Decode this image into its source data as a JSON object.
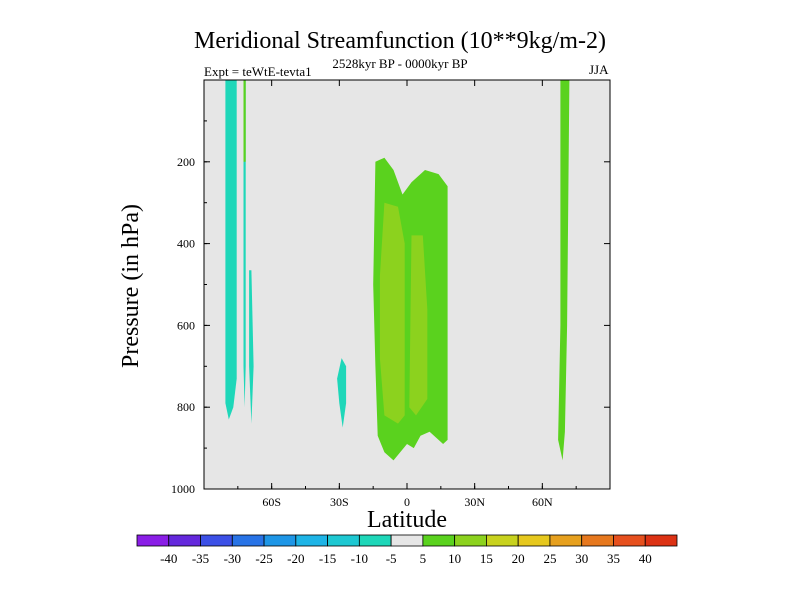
{
  "header": {
    "title": "Meridional Streamfunction (10**9kg/m-2)",
    "left_subtitle": "Expt = teWtE-tevta1",
    "center_subtitle": "2528kyr BP - 0000kyr BP",
    "right_subtitle": "JJA"
  },
  "chart_data": {
    "type": "contour",
    "title": "Meridional Streamfunction (10**9kg/m-2)",
    "xlabel": "Latitude",
    "ylabel": "Pressure (in hPa)",
    "xlim": [
      -90,
      90
    ],
    "ylim": [
      1000,
      0
    ],
    "x_ticks": [
      {
        "value": -60,
        "label": "60S"
      },
      {
        "value": -30,
        "label": "30S"
      },
      {
        "value": 0,
        "label": "0"
      },
      {
        "value": 30,
        "label": "30N"
      },
      {
        "value": 60,
        "label": "60N"
      }
    ],
    "y_ticks": [
      {
        "value": 200,
        "label": "200"
      },
      {
        "value": 400,
        "label": "400"
      },
      {
        "value": 600,
        "label": "600"
      },
      {
        "value": 800,
        "label": "800"
      },
      {
        "value": 1000,
        "label": "1000"
      }
    ],
    "background_color": "#e6e6e6",
    "colorbar": {
      "labels": [
        "-40",
        "-35",
        "-30",
        "-25",
        "-20",
        "-15",
        "-10",
        "-5",
        "5",
        "10",
        "15",
        "20",
        "25",
        "30",
        "35",
        "40"
      ],
      "colors": [
        "#8a1ee6",
        "#6428dc",
        "#3c50e6",
        "#2873e6",
        "#1e96e6",
        "#1eb4e6",
        "#1ec8d2",
        "#1ed7b9",
        "#e6e6e6",
        "#5ad21e",
        "#8cd21e",
        "#c8d21e",
        "#e6c81e",
        "#e6a01e",
        "#e6781e",
        "#e6501e",
        "#dc3214"
      ]
    },
    "regions": [
      {
        "level": "-10 to -5",
        "color": "#1ed7b9",
        "points": [
          [
            -80.5,
            0
          ],
          [
            -75.5,
            0
          ],
          [
            -75.5,
            730
          ],
          [
            -77,
            800
          ],
          [
            -79,
            830
          ],
          [
            -80.5,
            790
          ]
        ]
      },
      {
        "level": "-10 to -5",
        "color": "#1ed7b9",
        "points": [
          [
            -72.5,
            0
          ],
          [
            -71.5,
            0
          ],
          [
            -71.5,
            700
          ],
          [
            -72,
            800
          ],
          [
            -72.5,
            700
          ]
        ]
      },
      {
        "level": "-10 to -5",
        "color": "#1ed7b9",
        "points": [
          [
            -70,
            465
          ],
          [
            -69,
            465
          ],
          [
            -68,
            700
          ],
          [
            -69,
            840
          ],
          [
            -70,
            700
          ]
        ]
      },
      {
        "level": "-10 to -5",
        "color": "#1ed7b9",
        "points": [
          [
            -29,
            680
          ],
          [
            -27,
            700
          ],
          [
            -27,
            790
          ],
          [
            -28.5,
            850
          ],
          [
            -30,
            790
          ],
          [
            -31,
            730
          ]
        ]
      },
      {
        "level": "5 to 10",
        "color": "#5ad21e",
        "points": [
          [
            -72.5,
            0
          ],
          [
            -71.5,
            0
          ],
          [
            -71.5,
            200
          ],
          [
            -72.5,
            200
          ]
        ]
      },
      {
        "level": "5 to 10",
        "color": "#5ad21e",
        "points": [
          [
            -14,
            200
          ],
          [
            -10,
            190
          ],
          [
            -6,
            220
          ],
          [
            -2,
            280
          ],
          [
            2,
            250
          ],
          [
            8,
            220
          ],
          [
            14,
            230
          ],
          [
            18,
            260
          ],
          [
            18,
            880
          ],
          [
            16,
            890
          ],
          [
            10,
            860
          ],
          [
            6,
            870
          ],
          [
            3,
            900
          ],
          [
            0,
            890
          ],
          [
            -3,
            910
          ],
          [
            -6,
            930
          ],
          [
            -10,
            910
          ],
          [
            -13,
            870
          ],
          [
            -14,
            700
          ],
          [
            -15,
            500
          ]
        ]
      },
      {
        "level": "10 to 15",
        "color": "#8cd21e",
        "points": [
          [
            -10,
            300
          ],
          [
            -4,
            310
          ],
          [
            -1,
            400
          ],
          [
            -1,
            820
          ],
          [
            -4,
            840
          ],
          [
            -10,
            820
          ],
          [
            -12,
            680
          ],
          [
            -12,
            480
          ]
        ]
      },
      {
        "level": "10 to 15",
        "color": "#8cd21e",
        "points": [
          [
            2,
            380
          ],
          [
            7,
            380
          ],
          [
            9,
            560
          ],
          [
            9,
            780
          ],
          [
            4,
            820
          ],
          [
            1,
            800
          ]
        ]
      },
      {
        "level": "5 to 10",
        "color": "#5ad21e",
        "points": [
          [
            68,
            0
          ],
          [
            72,
            0
          ],
          [
            71,
            600
          ],
          [
            70,
            860
          ],
          [
            69,
            930
          ],
          [
            67,
            880
          ],
          [
            68,
            600
          ]
        ]
      }
    ]
  }
}
